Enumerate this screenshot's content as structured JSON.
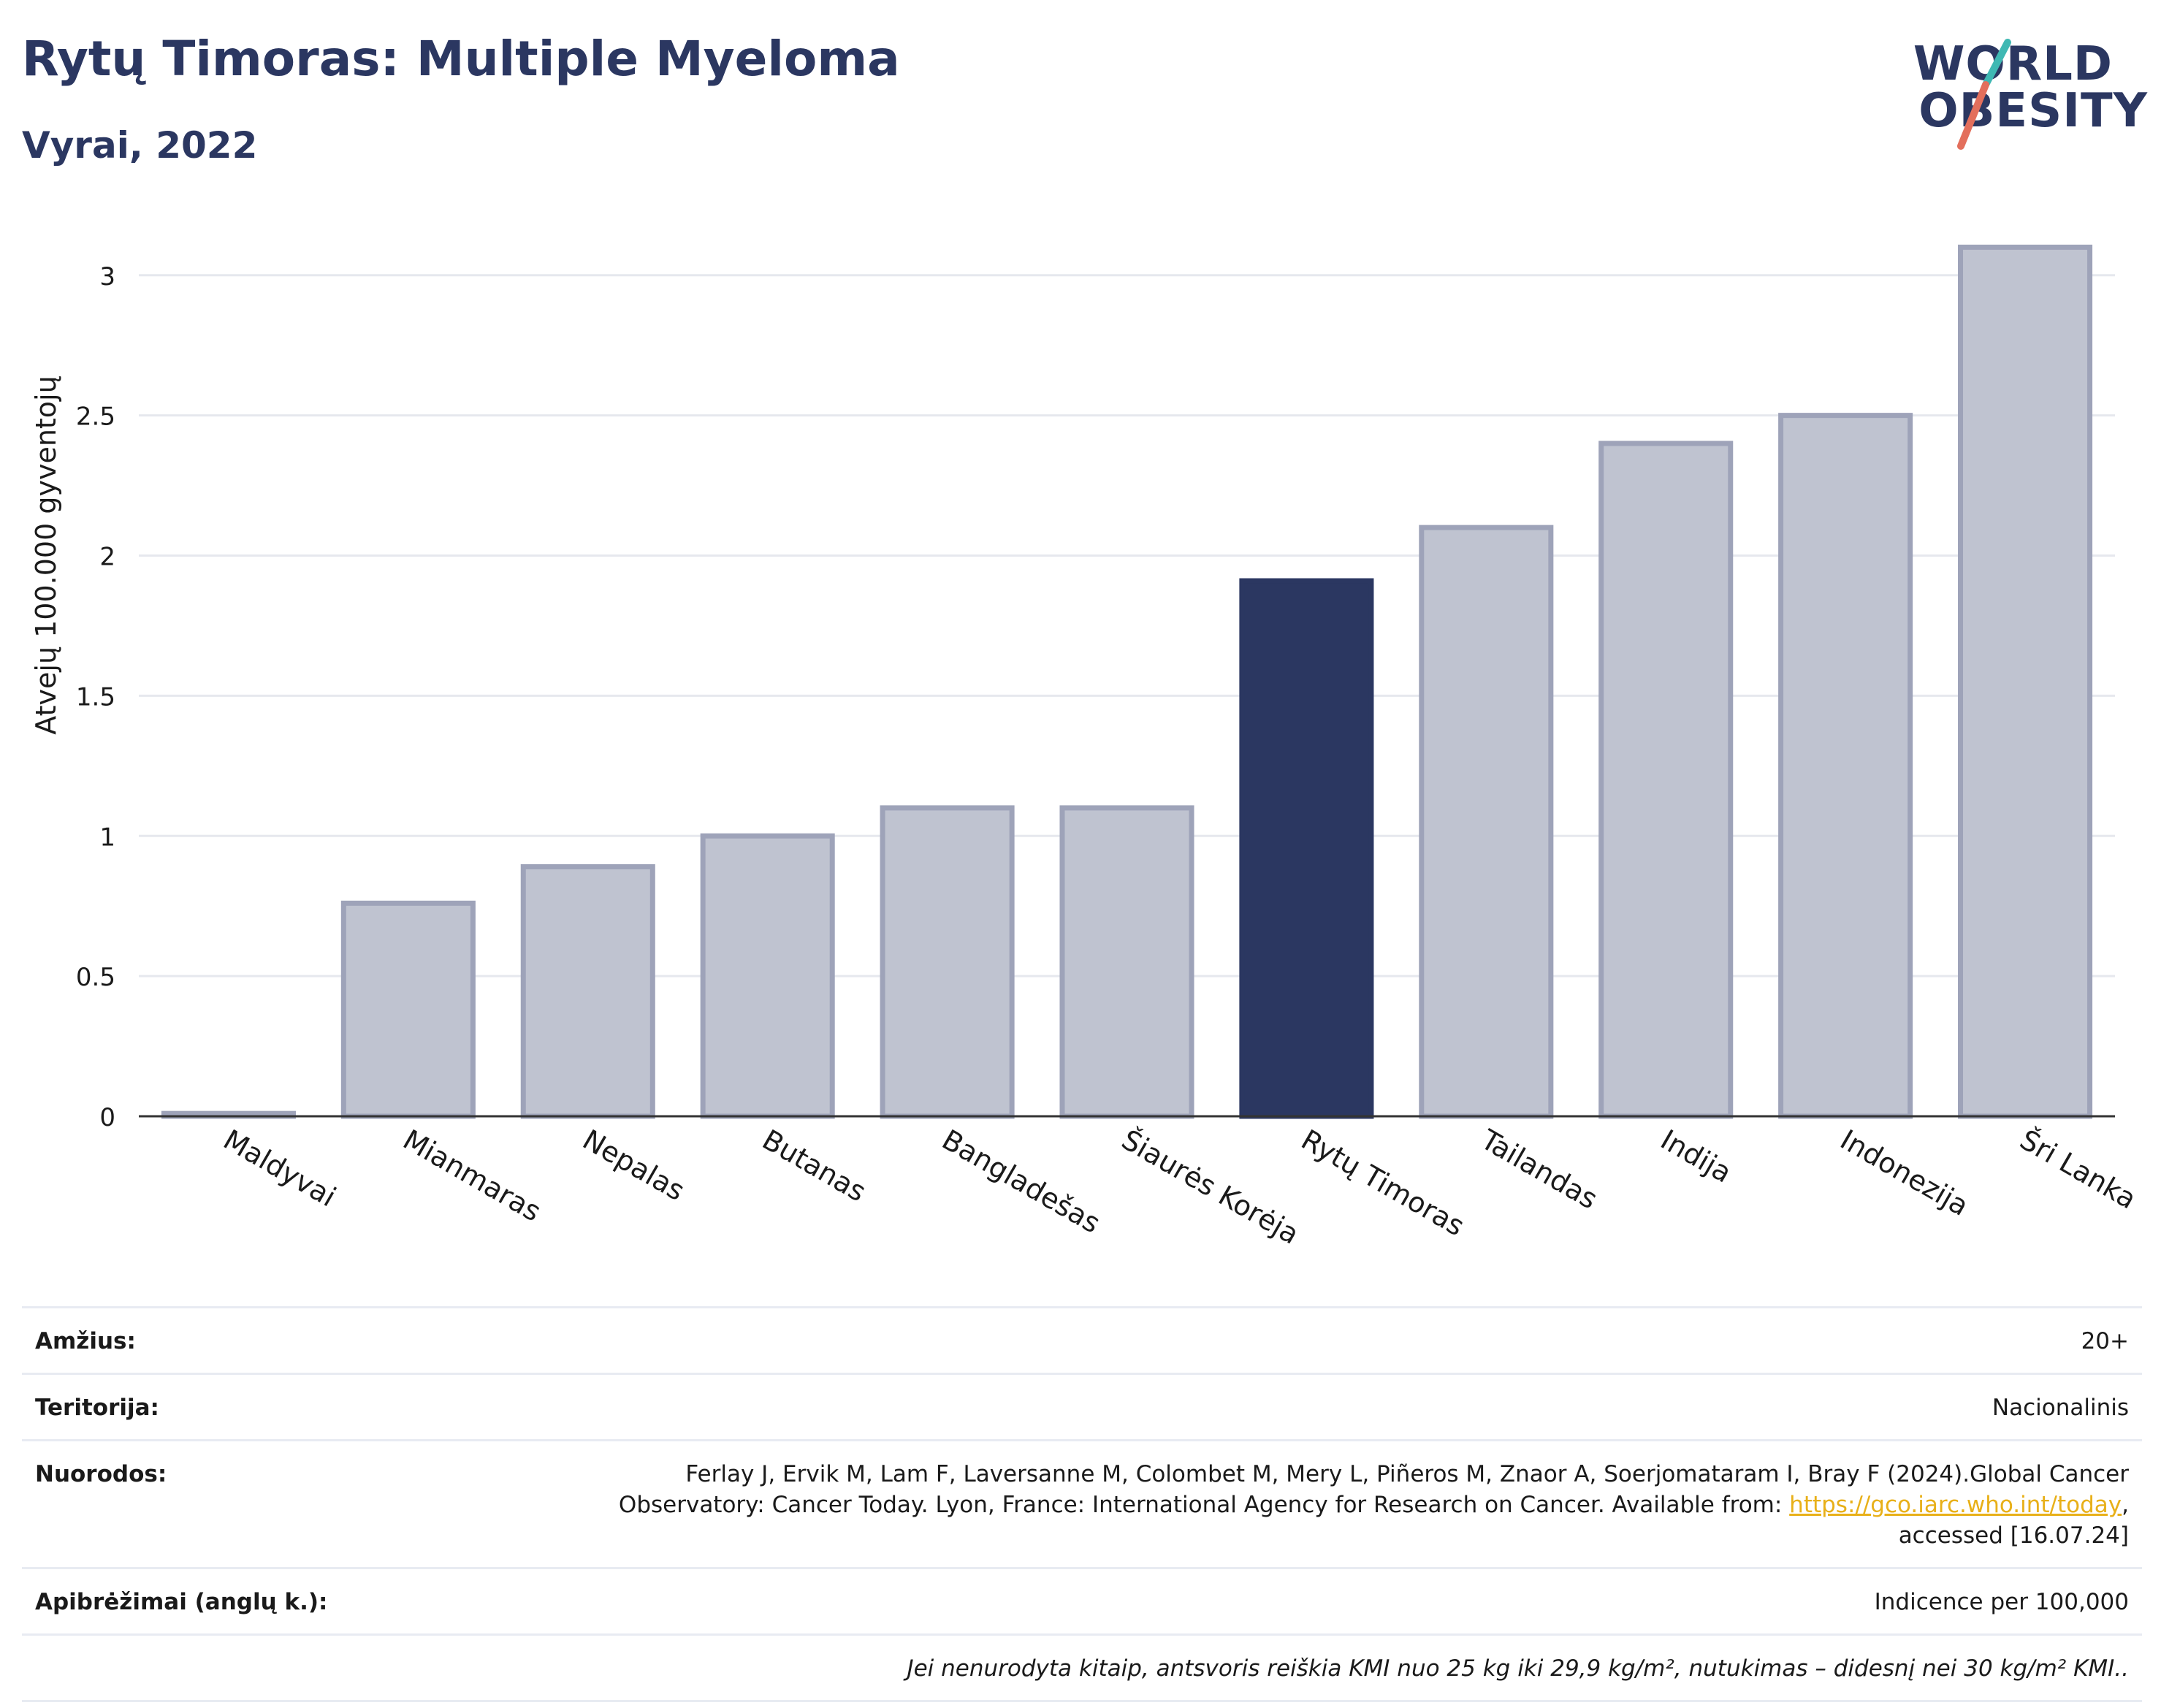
{
  "header": {
    "title": "Rytų Timoras: Multiple Myeloma",
    "subtitle": "Vyrai, 2022"
  },
  "logo": {
    "line1": "WORLD",
    "line2": "OBESITY",
    "colors": {
      "teal": "#3fb8b3",
      "coral": "#e36f5c",
      "navy": "#2b3761"
    }
  },
  "chart_data": {
    "type": "bar",
    "categories": [
      "Maldyvai",
      "Mianmaras",
      "Nepalas",
      "Butanas",
      "Bangladešas",
      "Šiaurės Korėja",
      "Rytų Timoras",
      "Tailandas",
      "Indija",
      "Indonezija",
      "Šri Lanka"
    ],
    "values": [
      0.01,
      0.76,
      0.89,
      1.0,
      1.1,
      1.1,
      1.91,
      2.1,
      2.4,
      2.5,
      3.1
    ],
    "highlight": "Rytų Timoras",
    "ylabel": "Atvejų 100.000 gyventojų",
    "ylim": [
      0,
      3.2
    ],
    "yticks": [
      0,
      0.5,
      1,
      1.5,
      2,
      2.5,
      3
    ],
    "ytick_labels": [
      "0",
      "0.5",
      "1",
      "1.5",
      "2",
      "2.5",
      "3"
    ],
    "grid": true,
    "colors": {
      "highlight": "#2b3761",
      "bar_fill": "#bfc3d0",
      "bar_stroke": "#9ea3b9"
    }
  },
  "info": {
    "age_label": "Amžius:",
    "age_value": "20+",
    "territory_label": "Teritorija:",
    "territory_value": "Nacionalinis",
    "references_label": "Nuorodos:",
    "references_text": "Ferlay J, Ervik M, Lam F, Laversanne M, Colombet M, Mery L, Piñeros M, Znaor A, Soerjomataram I, Bray F (2024).Global Cancer Observatory: Cancer Today. Lyon, France: International Agency for Research on Cancer. Available from: ",
    "references_link": "https://gco.iarc.who.int/today",
    "references_suffix": ", accessed [16.07.24]",
    "definitions_label": "Apibrėžimai (anglų k.):",
    "definitions_value": "Indicence per 100,000",
    "note": "Jei nenurodyta kitaip, antsvoris reiškia KMI nuo 25 kg iki 29,9 kg/m², nutukimas – didesnį nei 30 kg/m² KMI.."
  }
}
